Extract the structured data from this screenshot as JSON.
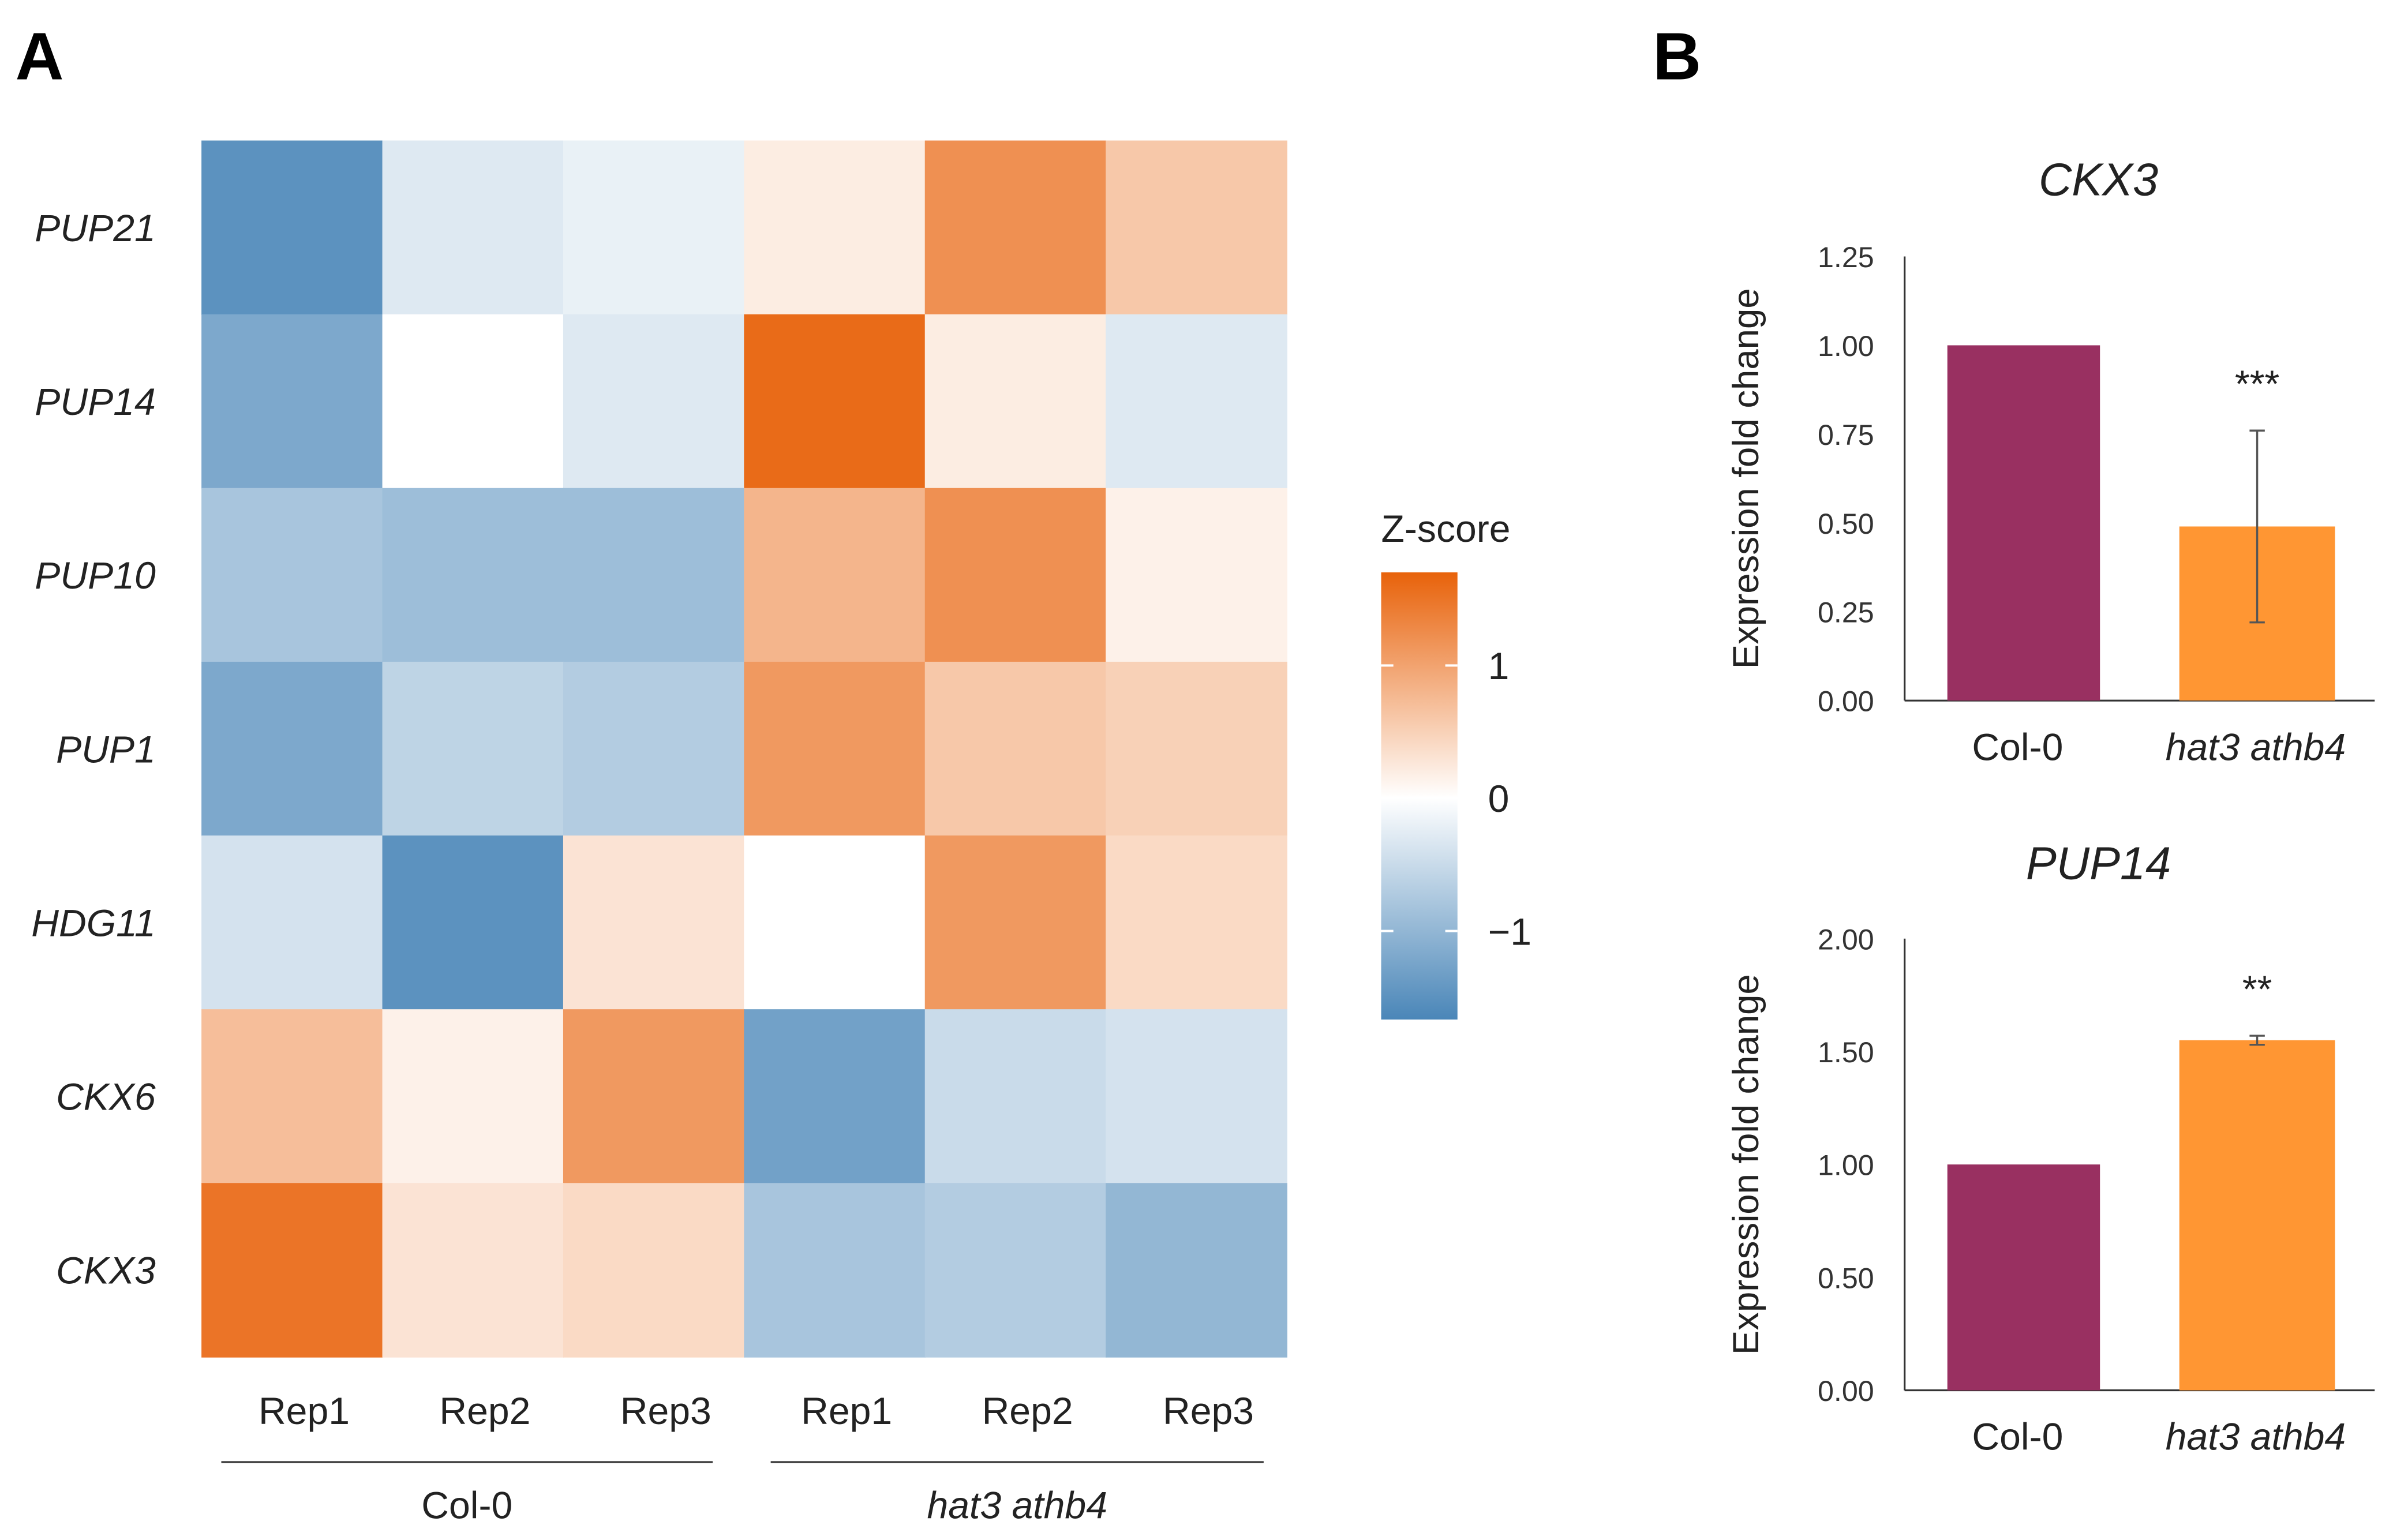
{
  "panels": {
    "a": "A",
    "b": "B"
  },
  "chart_data": [
    {
      "type": "heatmap",
      "title": "",
      "rows": [
        "PUP21",
        "PUP14",
        "PUP10",
        "PUP1",
        "HDG11",
        "CKX6",
        "CKX3"
      ],
      "columns": [
        "Rep1",
        "Rep2",
        "Rep3",
        "Rep1",
        "Rep2",
        "Rep3"
      ],
      "groups": [
        {
          "label": "Col-0",
          "italic": false
        },
        {
          "label": "hat3 athb4",
          "italic": true
        }
      ],
      "values": [
        [
          -1.5,
          -0.3,
          -0.2,
          0.2,
          1.2,
          0.6
        ],
        [
          -1.2,
          0.0,
          -0.3,
          1.6,
          0.2,
          -0.3
        ],
        [
          -0.8,
          -0.9,
          -0.9,
          0.8,
          1.2,
          0.15
        ],
        [
          -1.2,
          -0.6,
          -0.7,
          1.1,
          0.6,
          0.5
        ],
        [
          -0.4,
          -1.5,
          0.3,
          0.0,
          1.1,
          0.4
        ],
        [
          0.7,
          0.15,
          1.1,
          -1.3,
          -0.5,
          -0.4
        ],
        [
          1.5,
          0.3,
          0.4,
          -0.8,
          -0.7,
          -1.0
        ]
      ],
      "legend": {
        "title": "Z-score",
        "ticks": [
          1,
          0,
          -1
        ],
        "tick_labels": [
          "1",
          "0",
          "−1"
        ],
        "range": [
          -1.67,
          1.7
        ],
        "low_color": "#4a86b8",
        "mid_color": "#ffffff",
        "high_color": "#e8620a",
        "placement": "right"
      }
    },
    {
      "type": "bar",
      "title": "CKX3",
      "ylabel": "Expression fold change",
      "categories": [
        "Col-0",
        "hat3 athb4"
      ],
      "values": [
        1.0,
        0.49
      ],
      "errors": [
        0.0,
        0.27
      ],
      "significance": [
        "",
        "***"
      ],
      "colors": [
        "#993061",
        "#ff9633"
      ],
      "ylim": [
        0,
        1.25
      ],
      "yticks": [
        "0.00",
        "0.25",
        "0.50",
        "0.75",
        "1.00",
        "1.25"
      ]
    },
    {
      "type": "bar",
      "title": "PUP14",
      "ylabel": "Expression fold change",
      "categories": [
        "Col-0",
        "hat3 athb4"
      ],
      "values": [
        1.0,
        1.55
      ],
      "errors": [
        0.0,
        0.02
      ],
      "significance": [
        "",
        "**"
      ],
      "colors": [
        "#993061",
        "#ff9633"
      ],
      "ylim": [
        0,
        2.0
      ],
      "yticks": [
        "0.00",
        "0.50",
        "1.00",
        "1.50",
        "2.00"
      ]
    }
  ]
}
